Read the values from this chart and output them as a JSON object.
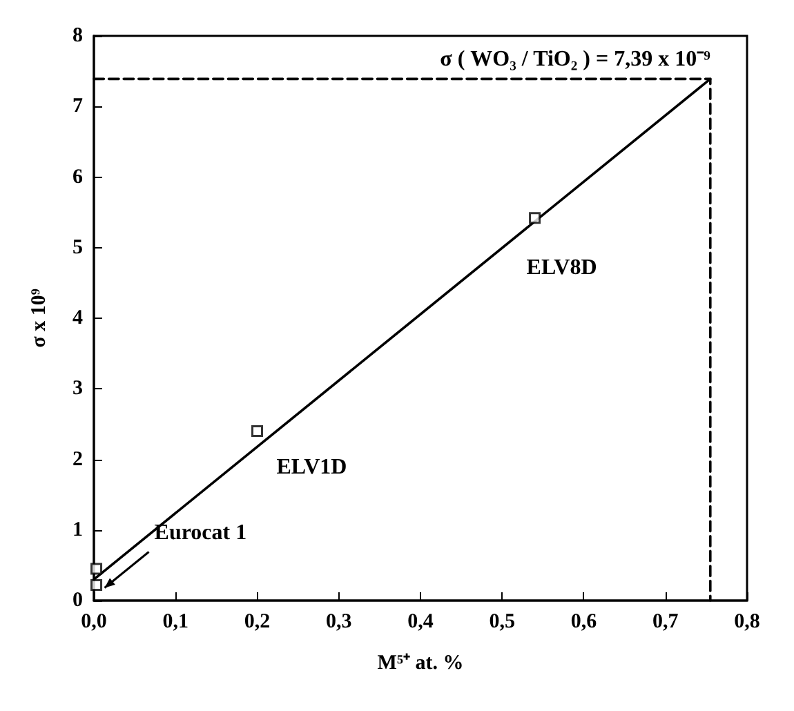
{
  "chart_data": {
    "type": "scatter",
    "xlabel": "M⁵⁺ at. %",
    "ylabel": "σ x 10⁹",
    "xlim": [
      0,
      0.8
    ],
    "ylim": [
      0,
      8
    ],
    "xticks": [
      {
        "value": 0,
        "label": "0,0"
      },
      {
        "value": 0.1,
        "label": "0,1"
      },
      {
        "value": 0.2,
        "label": "0,2"
      },
      {
        "value": 0.3,
        "label": "0,3"
      },
      {
        "value": 0.4,
        "label": "0,4"
      },
      {
        "value": 0.5,
        "label": "0,5"
      },
      {
        "value": 0.6,
        "label": "0,6"
      },
      {
        "value": 0.7,
        "label": "0,7"
      },
      {
        "value": 0.8,
        "label": "0,8"
      }
    ],
    "yticks": [
      0,
      1,
      2,
      3,
      4,
      5,
      6,
      7,
      8
    ],
    "grid": false,
    "marker": "square",
    "series": [
      {
        "color": "#000000",
        "x": [
          0.003,
          0.003,
          0.2,
          0.54
        ],
        "values": [
          0.45,
          0.22,
          2.4,
          5.42
        ]
      },
      {
        "type": "line",
        "color": "#000000",
        "line_style": "solid",
        "marker": "none",
        "x": [
          0,
          0.755
        ],
        "values": [
          0.3,
          7.39
        ]
      },
      {
        "type": "line",
        "color": "#000000",
        "line_style": "dashed",
        "marker": "none",
        "x": [
          0,
          0.755,
          0.755
        ],
        "values": [
          7.39,
          7.39,
          0
        ]
      }
    ],
    "annotations": [
      {
        "text": "σ ( WO₃ / TiO₂ ) = 7,39 x 10⁻⁹",
        "x": 0.755,
        "y": 7.39
      },
      {
        "text": "ELV1D",
        "x": 0.2,
        "y": 2.4
      },
      {
        "text": "ELV8D",
        "x": 0.54,
        "y": 5.42
      },
      {
        "text": "Eurocat 1",
        "x": 0.003,
        "y": 0.22
      }
    ]
  }
}
